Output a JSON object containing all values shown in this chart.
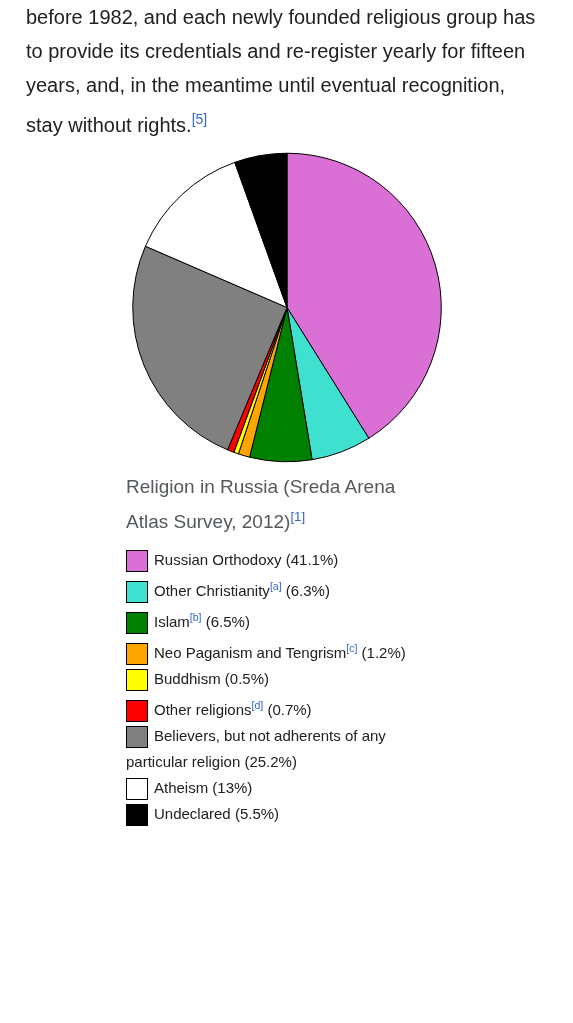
{
  "chart_data": {
    "type": "pie",
    "title": "Religion in Russia (Sreda Arena Atlas Survey, 2012)$^{[1]}$",
    "annotations": [
      "before 1982, and each newly founded religious group has to provide its credentials and re-register yearly for fifteen years, and, in the meantime until eventual recognition, stay without rights.$^{[5]}$"
    ],
    "categories": [
      "Russian Orthodoxy (41.1%)",
      "Other Christianity$^{[a]}$ (6.3%)",
      "Islam$^{[b]}$ (6.5%)",
      "Neo Paganism and Tengrism$^{[c]}$ (1.2%)",
      "Buddhism (0.5%)",
      "Other religions$^{[d]}$ (0.7%)",
      "Believers, but not adherents of any particular religion (25.2%)",
      "Atheism (13%)",
      "Undeclared (5.5%)"
    ],
    "values": [
      41.1,
      6.3,
      6.5,
      1.2,
      0.5,
      0.7,
      25.2,
      13,
      5.5
    ],
    "colors": [
      "#da70d6",
      "#40e0d0",
      "#008000",
      "#ffa500",
      "#ffff00",
      "#ff0000",
      "#808080",
      "#ffffff",
      "#000000"
    ],
    "legend": "bottom"
  }
}
